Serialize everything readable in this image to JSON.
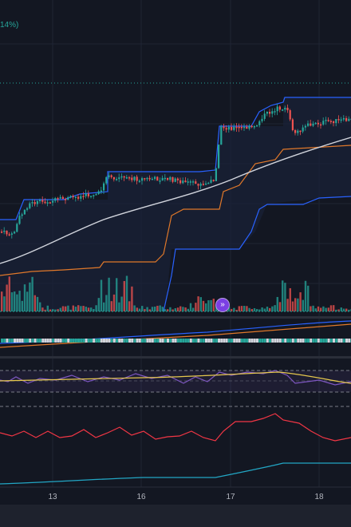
{
  "header": {
    "change_text": "14%)"
  },
  "time_axis": {
    "labels": [
      "13",
      "16",
      "17",
      "18"
    ]
  },
  "controls": {
    "scroll_to_realtime_glyph": "»",
    "scroll_to_realtime_icon": "double-chevron-right-icon"
  },
  "colors": {
    "background": "#131722",
    "bull": "#26a69a",
    "bear": "#ef5350",
    "blue_line": "#2962ff",
    "orange_line": "#e0782a",
    "ma_line": "#d1d4dc",
    "rsi_line": "#7e57c2",
    "rsi_ma": "#e6c84d",
    "red_indicator": "#f23645",
    "cyan_indicator": "#22a6c4"
  },
  "chart_data": {
    "type": "candlestick",
    "x_labels": [
      "13",
      "16",
      "17",
      "18"
    ],
    "indicators": [
      "price",
      "volume",
      "moving-average",
      "upper-channel",
      "lower-channel",
      "rsi",
      "oscillator",
      "trend-line"
    ]
  }
}
